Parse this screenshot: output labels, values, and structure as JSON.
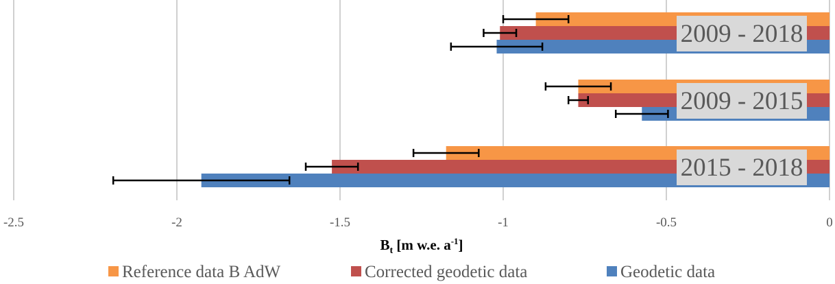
{
  "chart_data": {
    "type": "bar",
    "orientation": "horizontal",
    "categories": [
      "2009 - 2018",
      "2009 - 2015",
      "2015 - 2018"
    ],
    "series": [
      {
        "name": "Reference data B AdW",
        "color": "#f79646",
        "values": [
          -0.9,
          -0.77,
          -1.175
        ],
        "errors": [
          0.1,
          0.1,
          0.1
        ]
      },
      {
        "name": "Corrected geodetic data",
        "color": "#c0504d",
        "values": [
          -1.01,
          -0.77,
          -1.525
        ],
        "errors": [
          0.05,
          0.03,
          0.08
        ]
      },
      {
        "name": "Geodetic data",
        "color": "#4f81bd",
        "values": [
          -1.02,
          -0.575,
          -1.925
        ],
        "errors": [
          0.14,
          0.08,
          0.27
        ]
      }
    ],
    "xlim": [
      -2.5,
      0
    ],
    "xticks": [
      "-2.5",
      "-2",
      "-1.5",
      "-1",
      "-0.5",
      "0"
    ],
    "xtick_values": [
      -2.5,
      -2,
      -1.5,
      -1,
      -0.5,
      0
    ],
    "xlabel_main": "B",
    "xlabel_sub": "t",
    "xlabel_rest": " [m w.e. a",
    "xlabel_sup": "-1",
    "xlabel_end": "]",
    "grid": true,
    "legend": "bottom"
  }
}
